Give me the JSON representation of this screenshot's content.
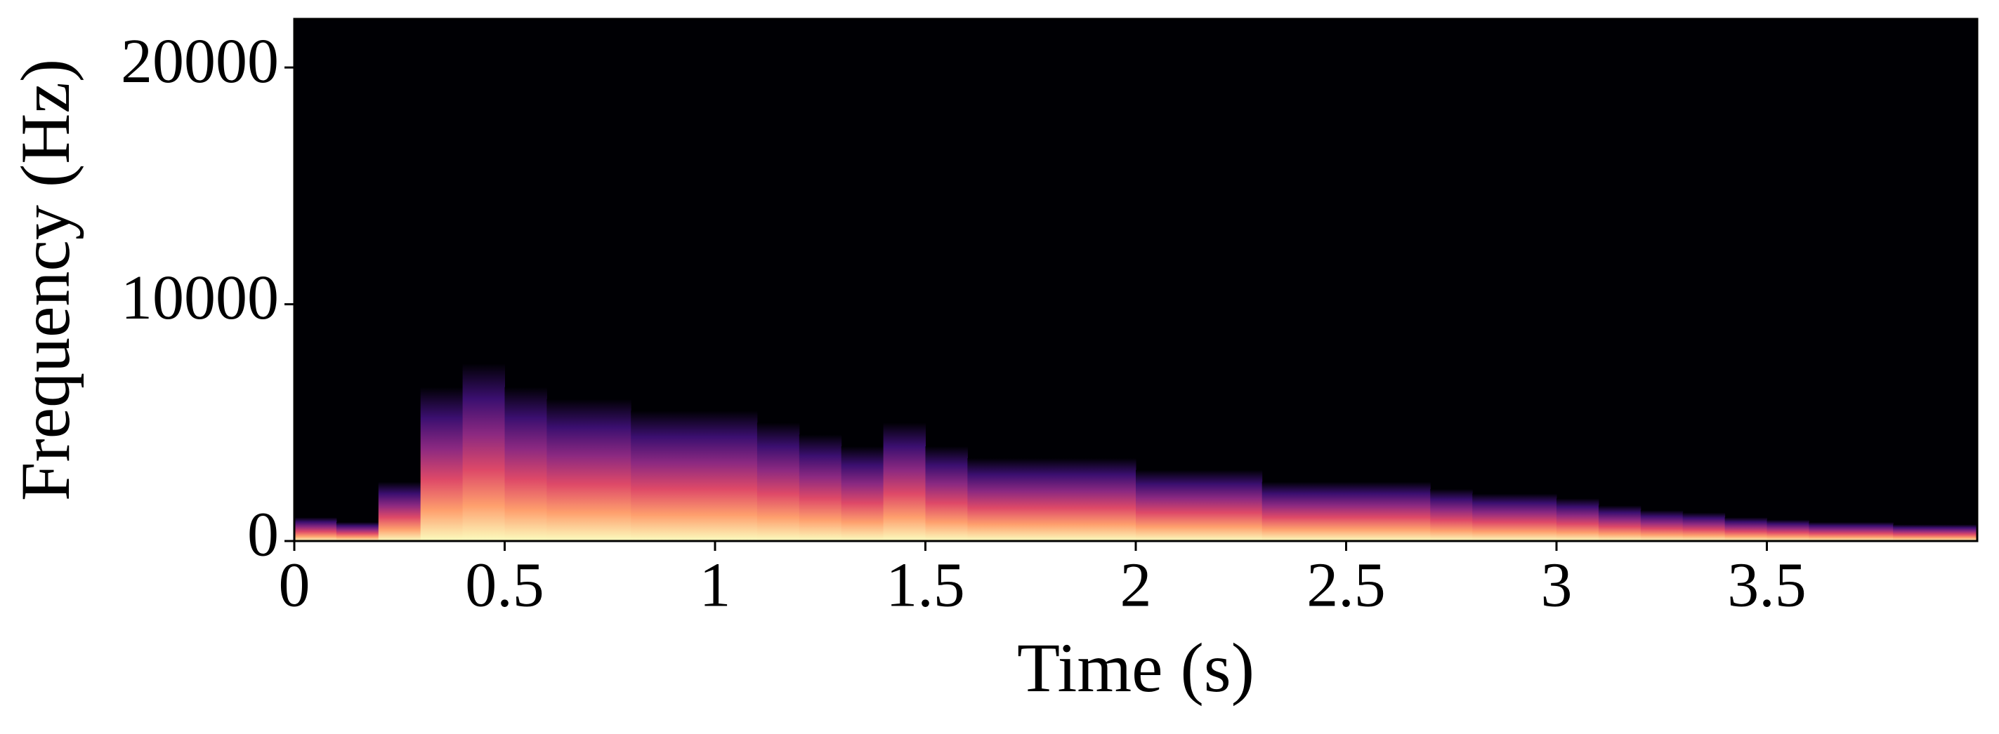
{
  "chart_data": {
    "type": "spectrogram",
    "x_label": "Time (s)",
    "y_label": "Frequency (Hz)",
    "x": [
      0,
      0.1,
      0.2,
      0.3,
      0.4,
      0.5,
      0.6,
      0.7,
      0.8,
      0.9,
      1.0,
      1.1,
      1.2,
      1.3,
      1.4,
      1.5,
      1.6,
      1.7,
      1.8,
      1.9,
      2.0,
      2.1,
      2.2,
      2.3,
      2.4,
      2.5,
      2.6,
      2.7,
      2.8,
      2.9,
      3.0,
      3.1,
      3.2,
      3.3,
      3.4,
      3.5,
      3.6,
      3.7,
      3.8,
      3.9
    ],
    "values": [
      1000,
      800,
      2500,
      6500,
      7500,
      6500,
      6000,
      6000,
      5500,
      5500,
      5500,
      5000,
      4500,
      4000,
      5000,
      4000,
      3500,
      3500,
      3500,
      3500,
      3000,
      3000,
      3000,
      2500,
      2500,
      2500,
      2500,
      2200,
      2000,
      2000,
      1800,
      1500,
      1300,
      1200,
      1000,
      900,
      800,
      800,
      700,
      700
    ],
    "colormap": [
      "#fcfdbf",
      "#fe9f6d",
      "#de4968",
      "#8c2981",
      "#3b0f70",
      "#000004"
    ],
    "xlim": [
      0,
      4.0
    ],
    "ylim": [
      0,
      22050
    ],
    "xticks": [
      0,
      0.5,
      1,
      1.5,
      2,
      2.5,
      3,
      3.5
    ],
    "yticks": [
      0,
      10000,
      20000
    ]
  }
}
